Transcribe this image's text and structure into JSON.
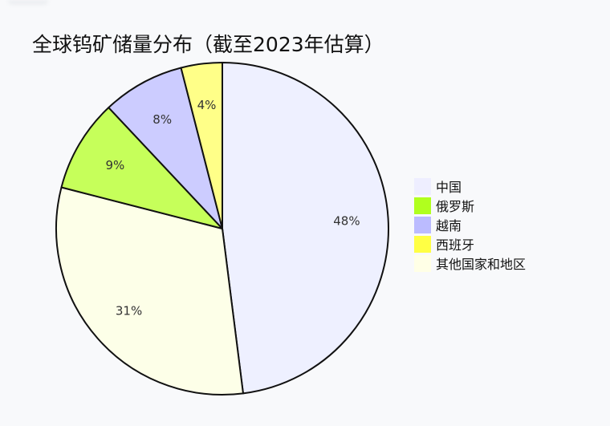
{
  "chart_data": {
    "type": "pie",
    "title": "全球钨矿储量分布（截至2023年估算）",
    "categories": [
      "中国",
      "其他国家和地区",
      "俄罗斯",
      "越南",
      "西班牙"
    ],
    "values": [
      48,
      31,
      9,
      8,
      4
    ],
    "labels": [
      "48%",
      "31%",
      "9%",
      "8%",
      "4%"
    ],
    "colors": [
      "#eef0ff",
      "#fdffe8",
      "#c6ff5a",
      "#ccccff",
      "#ffff88"
    ],
    "start_angle": "12 o'clock",
    "direction": "clockwise",
    "legend_position": "right",
    "legend": [
      {
        "label": "中国",
        "color": "#eeeeff"
      },
      {
        "label": "俄罗斯",
        "color": "#b0ff1e"
      },
      {
        "label": "越南",
        "color": "#bbbbff"
      },
      {
        "label": "西班牙",
        "color": "#ffff44"
      },
      {
        "label": "其他国家和地区",
        "color": "#ffffe6"
      }
    ]
  }
}
